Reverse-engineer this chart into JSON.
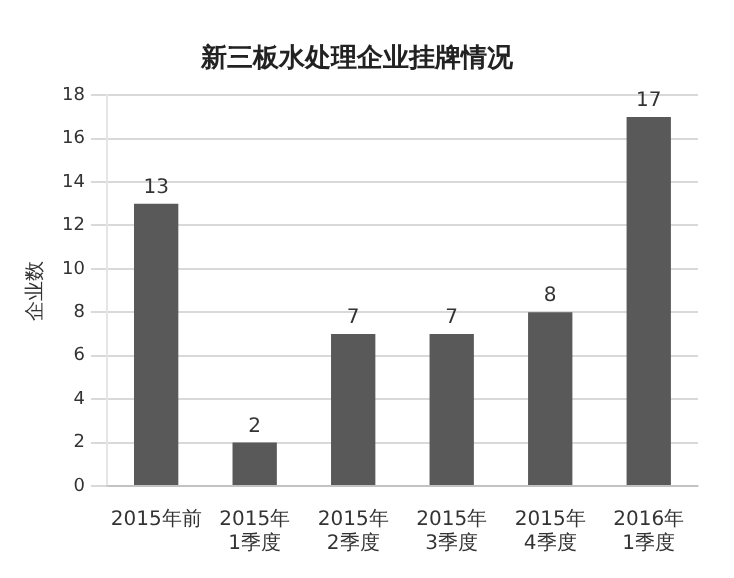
{
  "chart_data": {
    "type": "bar",
    "title": "新三板水处理企业挂牌情况",
    "ylabel": "企业数",
    "categories": [
      "2015年前",
      "2015年\n1季度",
      "2015年\n2季度",
      "2015年\n3季度",
      "2015年\n4季度",
      "2016年\n1季度"
    ],
    "values": [
      13,
      2,
      7,
      7,
      8,
      17
    ],
    "color": "#595959",
    "ylim": [
      0,
      18
    ],
    "yticks": [
      0,
      2,
      4,
      6,
      8,
      10,
      12,
      14,
      16,
      18
    ],
    "grid": "y",
    "data_labels": true,
    "legend": false
  }
}
